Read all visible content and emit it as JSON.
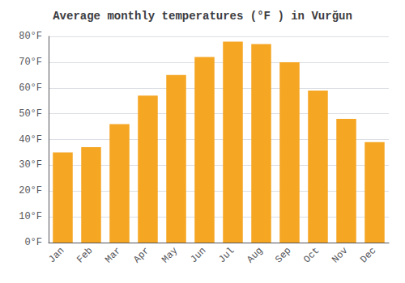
{
  "chart_data": {
    "type": "bar",
    "title": "Average monthly temperatures (°F ) in Vurğun",
    "categories": [
      "Jan",
      "Feb",
      "Mar",
      "Apr",
      "May",
      "Jun",
      "Jul",
      "Aug",
      "Sep",
      "Oct",
      "Nov",
      "Dec"
    ],
    "values": [
      35,
      37,
      46,
      57,
      65,
      72,
      78,
      77,
      70,
      59,
      48,
      39
    ],
    "color": "#F5A623",
    "ylim": [
      0,
      80
    ],
    "yticks": [
      {
        "value": 0,
        "label": "0°F"
      },
      {
        "value": 10,
        "label": "10°F"
      },
      {
        "value": 20,
        "label": "20°F"
      },
      {
        "value": 30,
        "label": "30°F"
      },
      {
        "value": 40,
        "label": "40°F"
      },
      {
        "value": 50,
        "label": "50°F"
      },
      {
        "value": 60,
        "label": "60°F"
      },
      {
        "value": 70,
        "label": "70°F"
      },
      {
        "value": 80,
        "label": "80°F"
      }
    ],
    "grid": true
  }
}
